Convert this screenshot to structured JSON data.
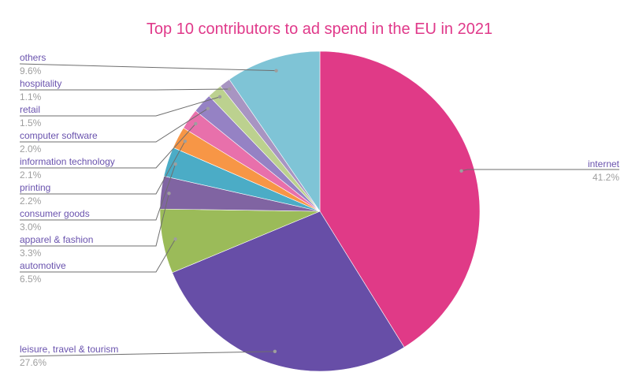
{
  "chart_data": {
    "type": "pie",
    "title": "Top 10 contributors to ad spend in the EU in 2021",
    "start_angle_deg": 0,
    "direction": "clockwise",
    "slices": [
      {
        "label": "internet",
        "value": 41.2,
        "display": "41.2%",
        "color": "#e03a87"
      },
      {
        "label": "leisure, travel & tourism",
        "value": 27.6,
        "display": "27.6%",
        "color": "#674ea7"
      },
      {
        "label": "automotive",
        "value": 6.5,
        "display": "6.5%",
        "color": "#9bbb59"
      },
      {
        "label": "apparel & fashion",
        "value": 3.3,
        "display": "3.3%",
        "color": "#8064a2"
      },
      {
        "label": "consumer goods",
        "value": 3.0,
        "display": "3.0%",
        "color": "#4bacc6"
      },
      {
        "label": "printing",
        "value": 2.2,
        "display": "2.2%",
        "color": "#f79646"
      },
      {
        "label": "information technology",
        "value": 2.1,
        "display": "2.1%",
        "color": "#e870ab"
      },
      {
        "label": "computer software",
        "value": 2.0,
        "display": "2.0%",
        "color": "#9582c4"
      },
      {
        "label": "retail",
        "value": 1.5,
        "display": "1.5%",
        "color": "#bcd18f"
      },
      {
        "label": "hospitality",
        "value": 1.1,
        "display": "1.1%",
        "color": "#a895c2"
      },
      {
        "label": "others",
        "value": 9.6,
        "display": "9.6%",
        "color": "#7fc4d6"
      }
    ],
    "legend_position": "leader-line labels"
  },
  "labels": {
    "internet": {
      "name": "internet",
      "pct": "41.2%"
    },
    "leisure": {
      "name": "leisure, travel & tourism",
      "pct": "27.6%"
    },
    "automotive": {
      "name": "automotive",
      "pct": "6.5%"
    },
    "apparel": {
      "name": "apparel & fashion",
      "pct": "3.3%"
    },
    "consumer": {
      "name": "consumer goods",
      "pct": "3.0%"
    },
    "printing": {
      "name": "printing",
      "pct": "2.2%"
    },
    "infotech": {
      "name": "information technology",
      "pct": "2.1%"
    },
    "software": {
      "name": "computer software",
      "pct": "2.0%"
    },
    "retail": {
      "name": "retail",
      "pct": "1.5%"
    },
    "hospitality": {
      "name": "hospitality",
      "pct": "1.1%"
    },
    "others": {
      "name": "others",
      "pct": "9.6%"
    }
  }
}
